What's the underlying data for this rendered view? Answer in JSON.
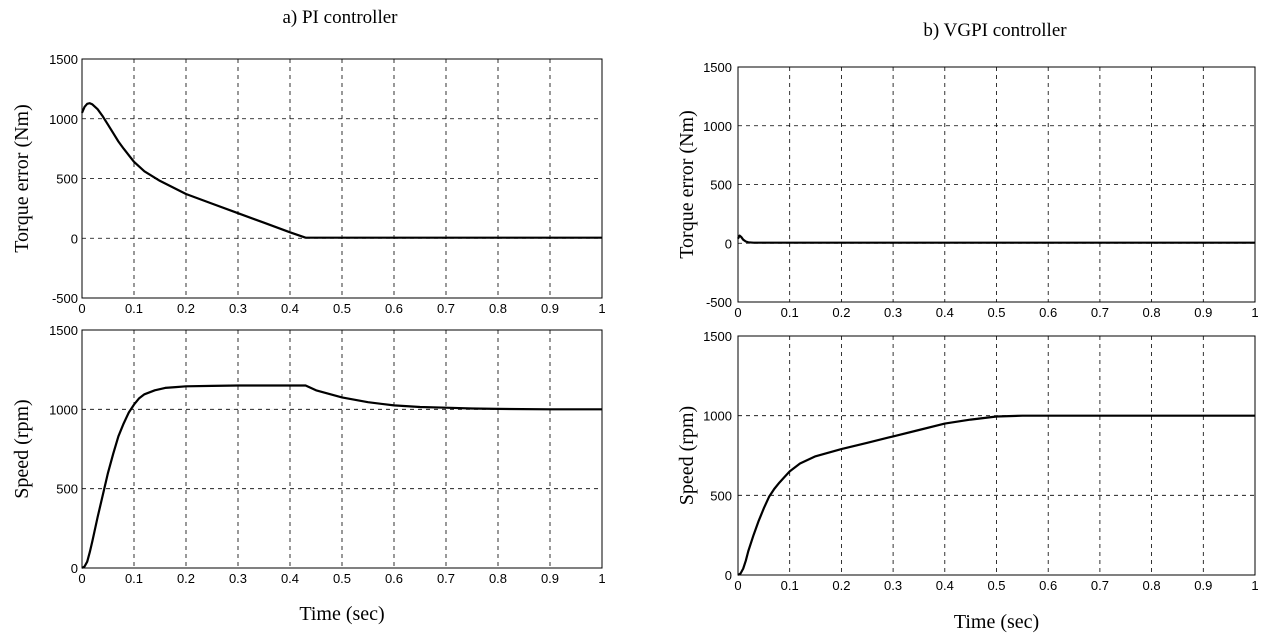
{
  "figure": {
    "titles": {
      "left": "a)  PI controller",
      "right": "b)  VGPI controller"
    }
  },
  "chart_data": [
    {
      "type": "line",
      "panel": "a-top",
      "title": "a)  PI controller",
      "xlabel": "",
      "ylabel": "Torque error (Nm)",
      "xlim": [
        0,
        1
      ],
      "ylim": [
        -500,
        1500
      ],
      "xticks": [
        "0",
        "0.1",
        "0.2",
        "0.3",
        "0.4",
        "0.5",
        "0.6",
        "0.7",
        "0.8",
        "0.9",
        "1"
      ],
      "yticks": [
        "-500",
        "0",
        "500",
        "1000",
        "1500"
      ],
      "grid": true,
      "series": [
        {
          "x": [
            0,
            0.005,
            0.01,
            0.015,
            0.02,
            0.03,
            0.04,
            0.05,
            0.06,
            0.07,
            0.08,
            0.1,
            0.12,
            0.15,
            0.2,
            0.25,
            0.3,
            0.35,
            0.4,
            0.43,
            0.45,
            0.5,
            0.6,
            0.7,
            0.8,
            0.9,
            1.0
          ],
          "y": [
            1050,
            1100,
            1125,
            1130,
            1120,
            1080,
            1020,
            950,
            880,
            810,
            750,
            640,
            560,
            480,
            370,
            290,
            210,
            130,
            50,
            5,
            5,
            5,
            5,
            5,
            5,
            5,
            5
          ]
        }
      ]
    },
    {
      "type": "line",
      "panel": "a-bottom",
      "xlabel": "Time (sec)",
      "ylabel": "Speed (rpm)",
      "xlim": [
        0,
        1
      ],
      "ylim": [
        0,
        1500
      ],
      "xticks": [
        "0",
        "0.1",
        "0.2",
        "0.3",
        "0.4",
        "0.5",
        "0.6",
        "0.7",
        "0.8",
        "0.9",
        "1"
      ],
      "yticks": [
        "0",
        "500",
        "1000",
        "1500"
      ],
      "grid": true,
      "series": [
        {
          "x": [
            0,
            0.005,
            0.01,
            0.015,
            0.02,
            0.03,
            0.04,
            0.05,
            0.06,
            0.07,
            0.08,
            0.09,
            0.1,
            0.11,
            0.12,
            0.14,
            0.16,
            0.18,
            0.2,
            0.25,
            0.3,
            0.35,
            0.4,
            0.43,
            0.45,
            0.5,
            0.55,
            0.6,
            0.65,
            0.7,
            0.75,
            0.8,
            0.9,
            1.0
          ],
          "y": [
            0,
            10,
            40,
            100,
            170,
            320,
            460,
            600,
            720,
            830,
            910,
            980,
            1030,
            1070,
            1095,
            1120,
            1135,
            1140,
            1145,
            1148,
            1150,
            1150,
            1150,
            1150,
            1120,
            1075,
            1045,
            1025,
            1015,
            1010,
            1005,
            1003,
            1000,
            1000
          ]
        }
      ]
    },
    {
      "type": "line",
      "panel": "b-top",
      "title": "b)  VGPI controller",
      "xlabel": "",
      "ylabel": "Torque error (Nm)",
      "xlim": [
        0,
        1
      ],
      "ylim": [
        -500,
        1500
      ],
      "xticks": [
        "0",
        "0.1",
        "0.2",
        "0.3",
        "0.4",
        "0.5",
        "0.6",
        "0.7",
        "0.8",
        "0.9",
        "1"
      ],
      "yticks": [
        "-500",
        "0",
        "500",
        "1000",
        "1500"
      ],
      "grid": true,
      "series": [
        {
          "x": [
            0,
            0.003,
            0.006,
            0.01,
            0.015,
            0.02,
            0.03,
            0.1,
            0.2,
            0.3,
            0.4,
            0.5,
            0.6,
            0.7,
            0.8,
            0.9,
            1.0
          ],
          "y": [
            40,
            65,
            55,
            30,
            15,
            8,
            5,
            5,
            5,
            5,
            5,
            5,
            5,
            5,
            5,
            5,
            5
          ]
        }
      ]
    },
    {
      "type": "line",
      "panel": "b-bottom",
      "xlabel": "Time (sec)",
      "ylabel": "Speed (rpm)",
      "xlim": [
        0,
        1
      ],
      "ylim": [
        0,
        1500
      ],
      "xticks": [
        "0",
        "0.1",
        "0.2",
        "0.3",
        "0.4",
        "0.5",
        "0.6",
        "0.7",
        "0.8",
        "0.9",
        "1"
      ],
      "yticks": [
        "0",
        "500",
        "1000",
        "1500"
      ],
      "grid": true,
      "series": [
        {
          "x": [
            0,
            0.005,
            0.01,
            0.015,
            0.02,
            0.03,
            0.04,
            0.05,
            0.06,
            0.07,
            0.08,
            0.09,
            0.1,
            0.12,
            0.15,
            0.2,
            0.25,
            0.3,
            0.35,
            0.4,
            0.45,
            0.5,
            0.55,
            0.6,
            0.7,
            0.8,
            0.9,
            1.0
          ],
          "y": [
            0,
            10,
            40,
            90,
            150,
            250,
            340,
            420,
            490,
            540,
            580,
            615,
            650,
            700,
            745,
            790,
            830,
            870,
            910,
            950,
            975,
            995,
            1000,
            1000,
            1000,
            1000,
            1000,
            1000
          ]
        }
      ]
    }
  ]
}
